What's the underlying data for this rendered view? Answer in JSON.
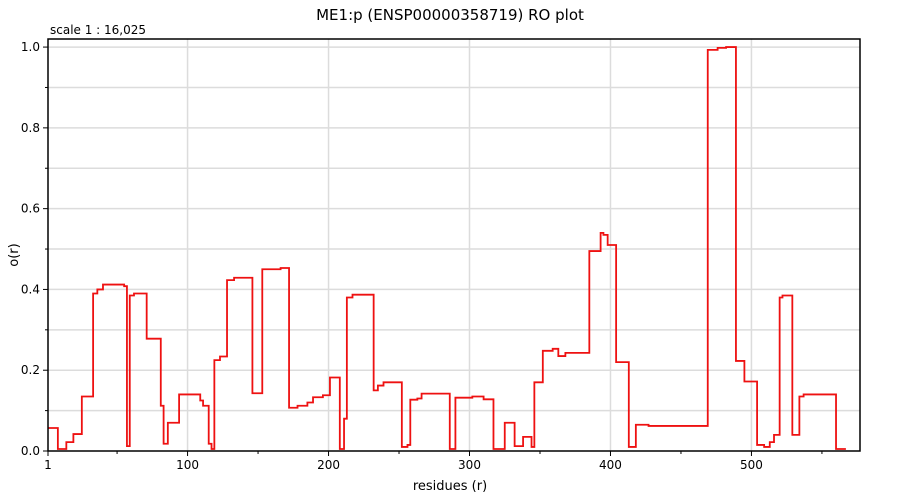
{
  "header": {
    "title": "ME1:p (ENSP00000358719) RO plot",
    "scale": "scale 1 : 16,025"
  },
  "chart_data": {
    "type": "line",
    "title": "ME1:p (ENSP00000358719) RO plot",
    "xlabel": "residues (r)",
    "ylabel": "o(r)",
    "xlim": [
      1,
      577
    ],
    "ylim": [
      0,
      1.02
    ],
    "xticks": [
      1,
      100,
      200,
      300,
      400,
      500
    ],
    "yticks": [
      0.0,
      0.2,
      0.4,
      0.6,
      0.8,
      1.0
    ],
    "grid": true,
    "colors": {
      "line": "#ee1111",
      "grid": "#dcdcdc",
      "frame": "#000000"
    },
    "series": [
      {
        "values": [
          [
            1,
            0.057
          ],
          [
            8,
            0.057
          ],
          [
            8,
            0.005
          ],
          [
            14,
            0.005
          ],
          [
            14,
            0.022
          ],
          [
            19,
            0.022
          ],
          [
            19,
            0.042
          ],
          [
            25,
            0.042
          ],
          [
            25,
            0.135
          ],
          [
            33,
            0.135
          ],
          [
            33,
            0.39
          ],
          [
            36,
            0.39
          ],
          [
            36,
            0.4
          ],
          [
            40,
            0.4
          ],
          [
            40,
            0.412
          ],
          [
            55,
            0.412
          ],
          [
            55,
            0.408
          ],
          [
            57,
            0.408
          ],
          [
            57,
            0.012
          ],
          [
            59,
            0.012
          ],
          [
            59,
            0.385
          ],
          [
            62,
            0.385
          ],
          [
            62,
            0.39
          ],
          [
            71,
            0.39
          ],
          [
            71,
            0.278
          ],
          [
            81,
            0.278
          ],
          [
            81,
            0.112
          ],
          [
            83,
            0.112
          ],
          [
            83,
            0.018
          ],
          [
            86,
            0.018
          ],
          [
            86,
            0.07
          ],
          [
            94,
            0.07
          ],
          [
            94,
            0.14
          ],
          [
            109,
            0.14
          ],
          [
            109,
            0.125
          ],
          [
            111,
            0.125
          ],
          [
            111,
            0.112
          ],
          [
            115,
            0.112
          ],
          [
            115,
            0.018
          ],
          [
            117,
            0.018
          ],
          [
            117,
            0.005
          ],
          [
            119,
            0.005
          ],
          [
            119,
            0.225
          ],
          [
            123,
            0.225
          ],
          [
            123,
            0.234
          ],
          [
            128,
            0.234
          ],
          [
            128,
            0.423
          ],
          [
            133,
            0.423
          ],
          [
            133,
            0.429
          ],
          [
            146,
            0.429
          ],
          [
            146,
            0.143
          ],
          [
            153,
            0.143
          ],
          [
            153,
            0.45
          ],
          [
            166,
            0.45
          ],
          [
            166,
            0.453
          ],
          [
            172,
            0.453
          ],
          [
            172,
            0.107
          ],
          [
            178,
            0.107
          ],
          [
            178,
            0.112
          ],
          [
            185,
            0.112
          ],
          [
            185,
            0.12
          ],
          [
            189,
            0.12
          ],
          [
            189,
            0.133
          ],
          [
            196,
            0.133
          ],
          [
            196,
            0.138
          ],
          [
            201,
            0.138
          ],
          [
            201,
            0.182
          ],
          [
            208,
            0.182
          ],
          [
            208,
            0.005
          ],
          [
            211,
            0.005
          ],
          [
            211,
            0.08
          ],
          [
            213,
            0.08
          ],
          [
            213,
            0.38
          ],
          [
            217,
            0.38
          ],
          [
            217,
            0.387
          ],
          [
            232,
            0.387
          ],
          [
            232,
            0.15
          ],
          [
            235,
            0.15
          ],
          [
            235,
            0.162
          ],
          [
            239,
            0.162
          ],
          [
            239,
            0.17
          ],
          [
            252,
            0.17
          ],
          [
            252,
            0.01
          ],
          [
            256,
            0.01
          ],
          [
            256,
            0.015
          ],
          [
            258,
            0.015
          ],
          [
            258,
            0.127
          ],
          [
            263,
            0.127
          ],
          [
            263,
            0.13
          ],
          [
            266,
            0.13
          ],
          [
            266,
            0.142
          ],
          [
            286,
            0.142
          ],
          [
            286,
            0.005
          ],
          [
            290,
            0.005
          ],
          [
            290,
            0.132
          ],
          [
            302,
            0.132
          ],
          [
            302,
            0.135
          ],
          [
            310,
            0.135
          ],
          [
            310,
            0.128
          ],
          [
            317,
            0.128
          ],
          [
            317,
            0.005
          ],
          [
            325,
            0.005
          ],
          [
            325,
            0.07
          ],
          [
            332,
            0.07
          ],
          [
            332,
            0.012
          ],
          [
            338,
            0.012
          ],
          [
            338,
            0.035
          ],
          [
            344,
            0.035
          ],
          [
            344,
            0.01
          ],
          [
            346,
            0.01
          ],
          [
            346,
            0.17
          ],
          [
            352,
            0.17
          ],
          [
            352,
            0.248
          ],
          [
            359,
            0.248
          ],
          [
            359,
            0.253
          ],
          [
            363,
            0.253
          ],
          [
            363,
            0.235
          ],
          [
            368,
            0.235
          ],
          [
            368,
            0.243
          ],
          [
            385,
            0.243
          ],
          [
            385,
            0.495
          ],
          [
            393,
            0.495
          ],
          [
            393,
            0.54
          ],
          [
            395,
            0.54
          ],
          [
            395,
            0.535
          ],
          [
            398,
            0.535
          ],
          [
            398,
            0.51
          ],
          [
            404,
            0.51
          ],
          [
            404,
            0.22
          ],
          [
            413,
            0.22
          ],
          [
            413,
            0.01
          ],
          [
            418,
            0.01
          ],
          [
            418,
            0.065
          ],
          [
            427,
            0.065
          ],
          [
            427,
            0.062
          ],
          [
            469,
            0.062
          ],
          [
            469,
            0.993
          ],
          [
            476,
            0.993
          ],
          [
            476,
            0.998
          ],
          [
            482,
            0.998
          ],
          [
            482,
            1.0
          ],
          [
            489,
            1.0
          ],
          [
            489,
            0.223
          ],
          [
            495,
            0.223
          ],
          [
            495,
            0.172
          ],
          [
            504,
            0.172
          ],
          [
            504,
            0.015
          ],
          [
            509,
            0.015
          ],
          [
            509,
            0.01
          ],
          [
            513,
            0.01
          ],
          [
            513,
            0.022
          ],
          [
            516,
            0.022
          ],
          [
            516,
            0.04
          ],
          [
            520,
            0.04
          ],
          [
            520,
            0.38
          ],
          [
            522,
            0.38
          ],
          [
            522,
            0.385
          ],
          [
            529,
            0.385
          ],
          [
            529,
            0.04
          ],
          [
            534,
            0.04
          ],
          [
            534,
            0.135
          ],
          [
            537,
            0.135
          ],
          [
            537,
            0.14
          ],
          [
            560,
            0.14
          ],
          [
            560,
            0.005
          ],
          [
            567,
            0.005
          ]
        ]
      }
    ]
  }
}
